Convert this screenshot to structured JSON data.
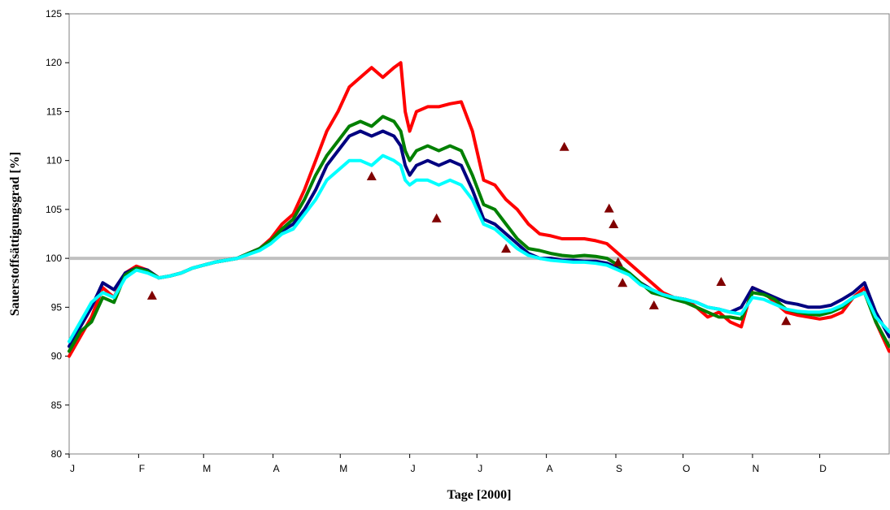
{
  "chart_data": {
    "type": "line",
    "xlabel": "Tage [2000]",
    "ylabel": "Sauerstoffsättigungsgrad [%]",
    "ylim": [
      80,
      125
    ],
    "yticks": [
      80,
      85,
      90,
      95,
      100,
      105,
      110,
      115,
      120,
      125
    ],
    "xlim": [
      0,
      366
    ],
    "month_ticks": [
      {
        "label": "J",
        "day": 0
      },
      {
        "label": "F",
        "day": 31
      },
      {
        "label": "M",
        "day": 60
      },
      {
        "label": "A",
        "day": 91
      },
      {
        "label": "M",
        "day": 121
      },
      {
        "label": "J",
        "day": 152
      },
      {
        "label": "J",
        "day": 182
      },
      {
        "label": "A",
        "day": 213
      },
      {
        "label": "S",
        "day": 244
      },
      {
        "label": "O",
        "day": 274
      },
      {
        "label": "N",
        "day": 305
      },
      {
        "label": "D",
        "day": 335
      }
    ],
    "grid": false,
    "legend": "none",
    "reference_line": {
      "y": 100,
      "color": "#c0c0c0"
    },
    "series": [
      {
        "color": "#ff0000",
        "x": [
          0,
          5,
          10,
          15,
          20,
          25,
          30,
          35,
          40,
          45,
          50,
          55,
          60,
          65,
          70,
          75,
          80,
          85,
          90,
          95,
          100,
          105,
          110,
          115,
          120,
          125,
          130,
          135,
          140,
          145,
          148,
          150,
          152,
          155,
          160,
          165,
          170,
          175,
          180,
          185,
          190,
          195,
          200,
          205,
          210,
          215,
          220,
          225,
          230,
          235,
          240,
          245,
          250,
          255,
          260,
          265,
          270,
          275,
          280,
          285,
          290,
          295,
          300,
          305,
          310,
          315,
          320,
          325,
          330,
          335,
          340,
          345,
          350,
          355,
          360,
          366
        ],
        "y": [
          90.0,
          92.0,
          94.0,
          97.0,
          96.0,
          98.5,
          99.2,
          98.8,
          98.0,
          98.2,
          98.5,
          99.0,
          99.3,
          99.6,
          99.8,
          100.0,
          100.5,
          101.0,
          102.0,
          103.5,
          104.5,
          107.0,
          110.0,
          113.0,
          115.0,
          117.5,
          118.5,
          119.5,
          118.5,
          119.5,
          120.0,
          115.0,
          113.0,
          115.0,
          115.5,
          115.5,
          115.8,
          116.0,
          113.0,
          108.0,
          107.5,
          106.0,
          105.0,
          103.5,
          102.5,
          102.3,
          102.0,
          102.0,
          102.0,
          101.8,
          101.5,
          100.5,
          99.5,
          98.5,
          97.5,
          96.5,
          96.0,
          95.8,
          95.0,
          94.0,
          94.5,
          93.5,
          93.0,
          97.0,
          96.5,
          95.5,
          94.5,
          94.2,
          94.0,
          93.8,
          94.0,
          94.5,
          96.0,
          97.0,
          93.5,
          90.5
        ]
      },
      {
        "color": "#000080",
        "x": [
          0,
          5,
          10,
          15,
          20,
          25,
          30,
          35,
          40,
          45,
          50,
          55,
          60,
          65,
          70,
          75,
          80,
          85,
          90,
          95,
          100,
          105,
          110,
          115,
          120,
          125,
          130,
          135,
          140,
          145,
          148,
          150,
          152,
          155,
          160,
          165,
          170,
          175,
          180,
          185,
          190,
          195,
          200,
          205,
          210,
          215,
          220,
          225,
          230,
          235,
          240,
          245,
          250,
          255,
          260,
          265,
          270,
          275,
          280,
          285,
          290,
          295,
          300,
          305,
          310,
          315,
          320,
          325,
          330,
          335,
          340,
          345,
          350,
          355,
          360,
          366
        ],
        "y": [
          91.0,
          93.0,
          95.0,
          97.5,
          96.8,
          98.5,
          99.0,
          98.8,
          98.0,
          98.2,
          98.5,
          99.0,
          99.3,
          99.6,
          99.8,
          100.0,
          100.5,
          101.0,
          101.8,
          102.8,
          103.5,
          105.0,
          107.0,
          109.5,
          111.0,
          112.5,
          113.0,
          112.5,
          113.0,
          112.5,
          111.5,
          109.5,
          108.5,
          109.5,
          110.0,
          109.5,
          110.0,
          109.5,
          107.0,
          104.0,
          103.5,
          102.5,
          101.5,
          100.5,
          100.0,
          100.0,
          99.8,
          99.8,
          99.7,
          99.7,
          99.5,
          99.0,
          98.5,
          97.5,
          96.8,
          96.3,
          96.0,
          95.8,
          95.5,
          95.0,
          94.8,
          94.5,
          95.0,
          97.0,
          96.5,
          96.0,
          95.5,
          95.3,
          95.0,
          95.0,
          95.2,
          95.8,
          96.5,
          97.5,
          94.5,
          92.0
        ]
      },
      {
        "color": "#008000",
        "x": [
          0,
          5,
          10,
          15,
          20,
          25,
          30,
          35,
          40,
          45,
          50,
          55,
          60,
          65,
          70,
          75,
          80,
          85,
          90,
          95,
          100,
          105,
          110,
          115,
          120,
          125,
          130,
          135,
          140,
          145,
          148,
          150,
          152,
          155,
          160,
          165,
          170,
          175,
          180,
          185,
          190,
          195,
          200,
          205,
          210,
          215,
          220,
          225,
          230,
          235,
          240,
          245,
          250,
          255,
          260,
          265,
          270,
          275,
          280,
          285,
          290,
          295,
          300,
          305,
          310,
          315,
          320,
          325,
          330,
          335,
          340,
          345,
          350,
          355,
          360,
          366
        ],
        "y": [
          90.5,
          92.5,
          93.5,
          96.0,
          95.5,
          98.3,
          99.0,
          98.7,
          98.0,
          98.2,
          98.5,
          99.0,
          99.3,
          99.6,
          99.8,
          100.0,
          100.5,
          101.0,
          101.8,
          103.0,
          104.0,
          106.0,
          108.5,
          110.5,
          112.0,
          113.5,
          114.0,
          113.5,
          114.5,
          114.0,
          113.0,
          111.0,
          110.0,
          111.0,
          111.5,
          111.0,
          111.5,
          111.0,
          108.5,
          105.5,
          105.0,
          103.5,
          102.0,
          101.0,
          100.8,
          100.5,
          100.3,
          100.2,
          100.3,
          100.2,
          100.0,
          99.3,
          98.5,
          97.5,
          96.5,
          96.2,
          95.8,
          95.5,
          95.0,
          94.5,
          94.0,
          94.0,
          93.8,
          96.5,
          96.3,
          95.8,
          94.8,
          94.5,
          94.3,
          94.2,
          94.5,
          95.0,
          96.0,
          96.5,
          93.5,
          91.0
        ]
      },
      {
        "color": "#00ffff",
        "x": [
          0,
          5,
          10,
          15,
          20,
          25,
          30,
          35,
          40,
          45,
          50,
          55,
          60,
          65,
          70,
          75,
          80,
          85,
          90,
          95,
          100,
          105,
          110,
          115,
          120,
          125,
          130,
          135,
          140,
          145,
          148,
          150,
          152,
          155,
          160,
          165,
          170,
          175,
          180,
          185,
          190,
          195,
          200,
          205,
          210,
          215,
          220,
          225,
          230,
          235,
          240,
          245,
          250,
          255,
          260,
          265,
          270,
          275,
          280,
          285,
          290,
          295,
          300,
          305,
          310,
          315,
          320,
          325,
          330,
          335,
          340,
          345,
          350,
          355,
          360,
          366
        ],
        "y": [
          91.5,
          93.5,
          95.5,
          96.5,
          96.0,
          98.0,
          98.8,
          98.5,
          98.0,
          98.2,
          98.5,
          99.0,
          99.3,
          99.6,
          99.8,
          100.0,
          100.4,
          100.8,
          101.5,
          102.5,
          103.0,
          104.5,
          106.0,
          108.0,
          109.0,
          110.0,
          110.0,
          109.5,
          110.5,
          110.0,
          109.5,
          108.0,
          107.5,
          108.0,
          108.0,
          107.5,
          108.0,
          107.5,
          106.0,
          103.5,
          103.0,
          102.0,
          101.0,
          100.3,
          100.0,
          99.8,
          99.7,
          99.6,
          99.6,
          99.5,
          99.3,
          98.8,
          98.3,
          97.3,
          96.8,
          96.3,
          96.0,
          95.8,
          95.5,
          95.0,
          94.8,
          94.5,
          94.3,
          96.0,
          95.8,
          95.3,
          94.8,
          94.6,
          94.5,
          94.5,
          94.7,
          95.2,
          96.0,
          96.5,
          94.0,
          92.5
        ]
      }
    ],
    "markers": {
      "symbol": "triangle",
      "color": "#800000",
      "points": [
        {
          "x": 37,
          "y": 96.2
        },
        {
          "x": 135,
          "y": 108.4
        },
        {
          "x": 164,
          "y": 104.1
        },
        {
          "x": 195,
          "y": 101.0
        },
        {
          "x": 221,
          "y": 111.4
        },
        {
          "x": 241,
          "y": 105.1
        },
        {
          "x": 243,
          "y": 103.5
        },
        {
          "x": 245,
          "y": 99.6
        },
        {
          "x": 247,
          "y": 97.5
        },
        {
          "x": 261,
          "y": 95.2
        },
        {
          "x": 291,
          "y": 97.6
        },
        {
          "x": 320,
          "y": 93.6
        }
      ]
    }
  }
}
